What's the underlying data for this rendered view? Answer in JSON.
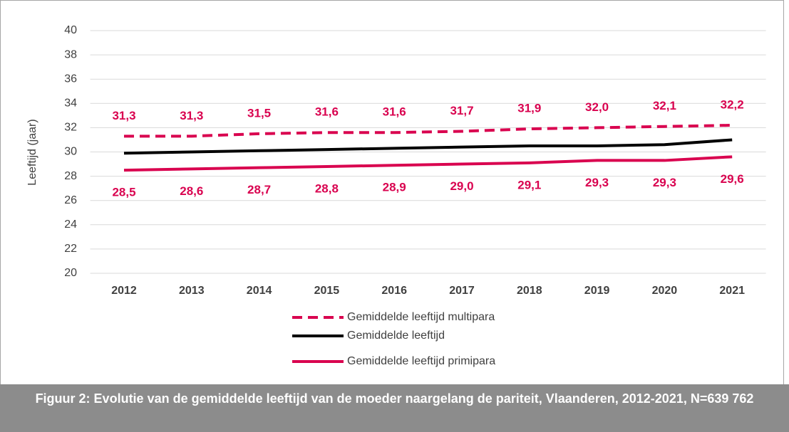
{
  "chart_data": {
    "type": "line",
    "y_label": "Leeftijd (jaar)",
    "caption": "Figuur 2: Evolutie van de gemiddelde leeftijd van de moeder naargelang de pariteit, Vlaanderen, 2012-2021, N=639 762",
    "categories": [
      "2012",
      "2013",
      "2014",
      "2015",
      "2016",
      "2017",
      "2018",
      "2019",
      "2020",
      "2021"
    ],
    "series": [
      {
        "name": "Gemiddelde leeftijd multipara",
        "color": "#d9024f",
        "style": "dashed",
        "label_position": "above",
        "values": [
          31.3,
          31.3,
          31.5,
          31.6,
          31.6,
          31.7,
          31.9,
          32.0,
          32.1,
          32.2
        ],
        "value_labels": [
          "31,3",
          "31,3",
          "31,5",
          "31,6",
          "31,6",
          "31,7",
          "31,9",
          "32,0",
          "32,1",
          "32,2"
        ]
      },
      {
        "name": "Gemiddelde leeftijd",
        "color": "#000000",
        "style": "solid",
        "values": [
          29.9,
          30.0,
          30.1,
          30.2,
          30.3,
          30.4,
          30.5,
          30.5,
          30.6,
          31.0
        ]
      },
      {
        "name": "Gemiddelde leeftijd primipara",
        "color": "#d9024f",
        "style": "solid",
        "label_position": "below",
        "values": [
          28.5,
          28.6,
          28.7,
          28.8,
          28.9,
          29.0,
          29.1,
          29.3,
          29.3,
          29.6
        ],
        "value_labels": [
          "28,5",
          "28,6",
          "28,7",
          "28,8",
          "28,9",
          "29,0",
          "29,1",
          "29,3",
          "29,3",
          "29,6"
        ]
      }
    ],
    "ylim": [
      20,
      40
    ],
    "yticks": [
      20,
      22,
      24,
      26,
      28,
      30,
      32,
      34,
      36,
      38,
      40
    ],
    "grid": true
  }
}
